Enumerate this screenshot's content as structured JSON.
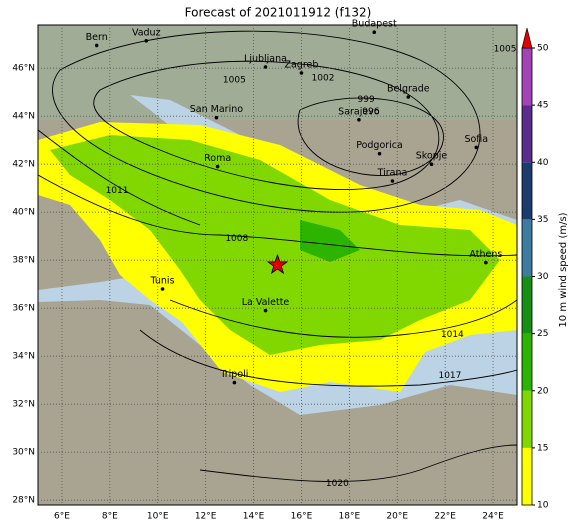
{
  "title": "Forecast of 2021011912 (f132)",
  "map": {
    "lon_range": [
      5,
      25
    ],
    "lat_range": [
      27.8,
      47.8
    ],
    "lon_ticks": [
      {
        "value": 6,
        "label": "6°E"
      },
      {
        "value": 8,
        "label": "8°E"
      },
      {
        "value": 10,
        "label": "10°E"
      },
      {
        "value": 12,
        "label": "12°E"
      },
      {
        "value": 14,
        "label": "14°E"
      },
      {
        "value": 16,
        "label": "16°E"
      },
      {
        "value": 18,
        "label": "18°E"
      },
      {
        "value": 20,
        "label": "20°E"
      },
      {
        "value": 22,
        "label": "22°E"
      },
      {
        "value": 24,
        "label": "24°E"
      }
    ],
    "lat_ticks": [
      {
        "value": 28,
        "label": "28°N"
      },
      {
        "value": 30,
        "label": "30°N"
      },
      {
        "value": 32,
        "label": "32°N"
      },
      {
        "value": 34,
        "label": "34°N"
      },
      {
        "value": 36,
        "label": "36°N"
      },
      {
        "value": 38,
        "label": "38°N"
      },
      {
        "value": 40,
        "label": "40°N"
      },
      {
        "value": 42,
        "label": "42°N"
      },
      {
        "value": 44,
        "label": "44°N"
      },
      {
        "value": 46,
        "label": "46°N"
      }
    ],
    "cities": [
      {
        "name": "Bern",
        "lon": 7.45,
        "lat": 46.95
      },
      {
        "name": "Vaduz",
        "lon": 9.52,
        "lat": 47.14
      },
      {
        "name": "Budapest",
        "lon": 19.04,
        "lat": 47.5
      },
      {
        "name": "Ljubljana",
        "lon": 14.5,
        "lat": 46.05
      },
      {
        "name": "Zagreb",
        "lon": 16.0,
        "lat": 45.8
      },
      {
        "name": "San Marino",
        "lon": 12.45,
        "lat": 43.94
      },
      {
        "name": "Belgrade",
        "lon": 20.46,
        "lat": 44.8
      },
      {
        "name": "Sarajevo",
        "lon": 18.4,
        "lat": 43.85
      },
      {
        "name": "Roma",
        "lon": 12.5,
        "lat": 41.9
      },
      {
        "name": "Podgorica",
        "lon": 19.26,
        "lat": 42.44
      },
      {
        "name": "Skopje",
        "lon": 21.43,
        "lat": 42.0
      },
      {
        "name": "Sofia",
        "lon": 23.3,
        "lat": 42.7
      },
      {
        "name": "Tirana",
        "lon": 19.8,
        "lat": 41.3
      },
      {
        "name": "Athens",
        "lon": 23.7,
        "lat": 37.9
      },
      {
        "name": "Tunis",
        "lon": 10.2,
        "lat": 36.8
      },
      {
        "name": "La Valette",
        "lon": 14.5,
        "lat": 35.9
      },
      {
        "name": "Tripoli",
        "lon": 13.2,
        "lat": 32.9
      }
    ],
    "isobar_labels": [
      {
        "label": "1005",
        "lon": 24.5,
        "lat": 46.8
      },
      {
        "label": "1005",
        "lon": 13.2,
        "lat": 45.5
      },
      {
        "label": "1002",
        "lon": 16.9,
        "lat": 45.6
      },
      {
        "label": "999",
        "lon": 18.7,
        "lat": 44.7
      },
      {
        "label": "996",
        "lon": 18.9,
        "lat": 44.2
      },
      {
        "label": "1011",
        "lon": 8.3,
        "lat": 40.9
      },
      {
        "label": "1008",
        "lon": 13.3,
        "lat": 38.9
      },
      {
        "label": "1014",
        "lon": 22.3,
        "lat": 34.9
      },
      {
        "label": "1017",
        "lon": 22.2,
        "lat": 33.2
      },
      {
        "label": "1020",
        "lon": 17.5,
        "lat": 28.7
      }
    ],
    "marker": {
      "lon": 15.0,
      "lat": 37.8
    }
  },
  "colorbar": {
    "label": "10 m wind speed (m/s)",
    "range": [
      10,
      50
    ],
    "ticks": [
      10,
      15,
      20,
      25,
      30,
      35,
      40,
      45,
      50
    ],
    "colors": [
      "#ffff00",
      "#80d800",
      "#2db400",
      "#159015",
      "#3d7ba0",
      "#1d3c6e",
      "#5a2c8c",
      "#a343b5"
    ],
    "extend_color": "#e00000"
  }
}
